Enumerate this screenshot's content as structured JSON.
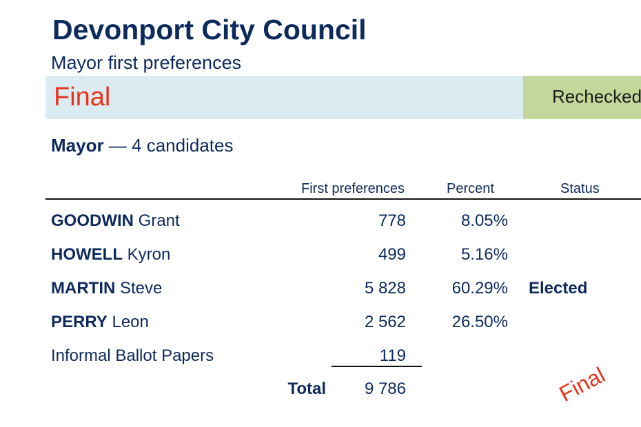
{
  "header": {
    "title": "Devonport City Council",
    "subtitle": "Mayor first preferences"
  },
  "banner": {
    "status": "Final",
    "recheck_label": "Rechecked",
    "status_color": "#e8341c",
    "banner_color": "#daebf1",
    "recheck_color": "#c4d79b"
  },
  "section": {
    "office": "Mayor",
    "candidates_text": " — 4 candidates"
  },
  "table": {
    "columns": {
      "first_preferences": "First preferences",
      "percent": "Percent",
      "status": "Status"
    },
    "rows": [
      {
        "surname": "GOODWIN",
        "given": "Grant",
        "votes": "778",
        "percent": "8.05%",
        "status": ""
      },
      {
        "surname": "HOWELL",
        "given": "Kyron",
        "votes": "499",
        "percent": "5.16%",
        "status": ""
      },
      {
        "surname": "MARTIN",
        "given": "Steve",
        "votes": "5 828",
        "percent": "60.29%",
        "status": "Elected"
      },
      {
        "surname": "PERRY",
        "given": "Leon",
        "votes": "2 562",
        "percent": "26.50%",
        "status": ""
      }
    ],
    "informal": {
      "label": "Informal Ballot Papers",
      "votes": "119"
    },
    "total": {
      "label": "Total",
      "votes": "9 786"
    }
  },
  "stamp": {
    "text": "Final"
  }
}
